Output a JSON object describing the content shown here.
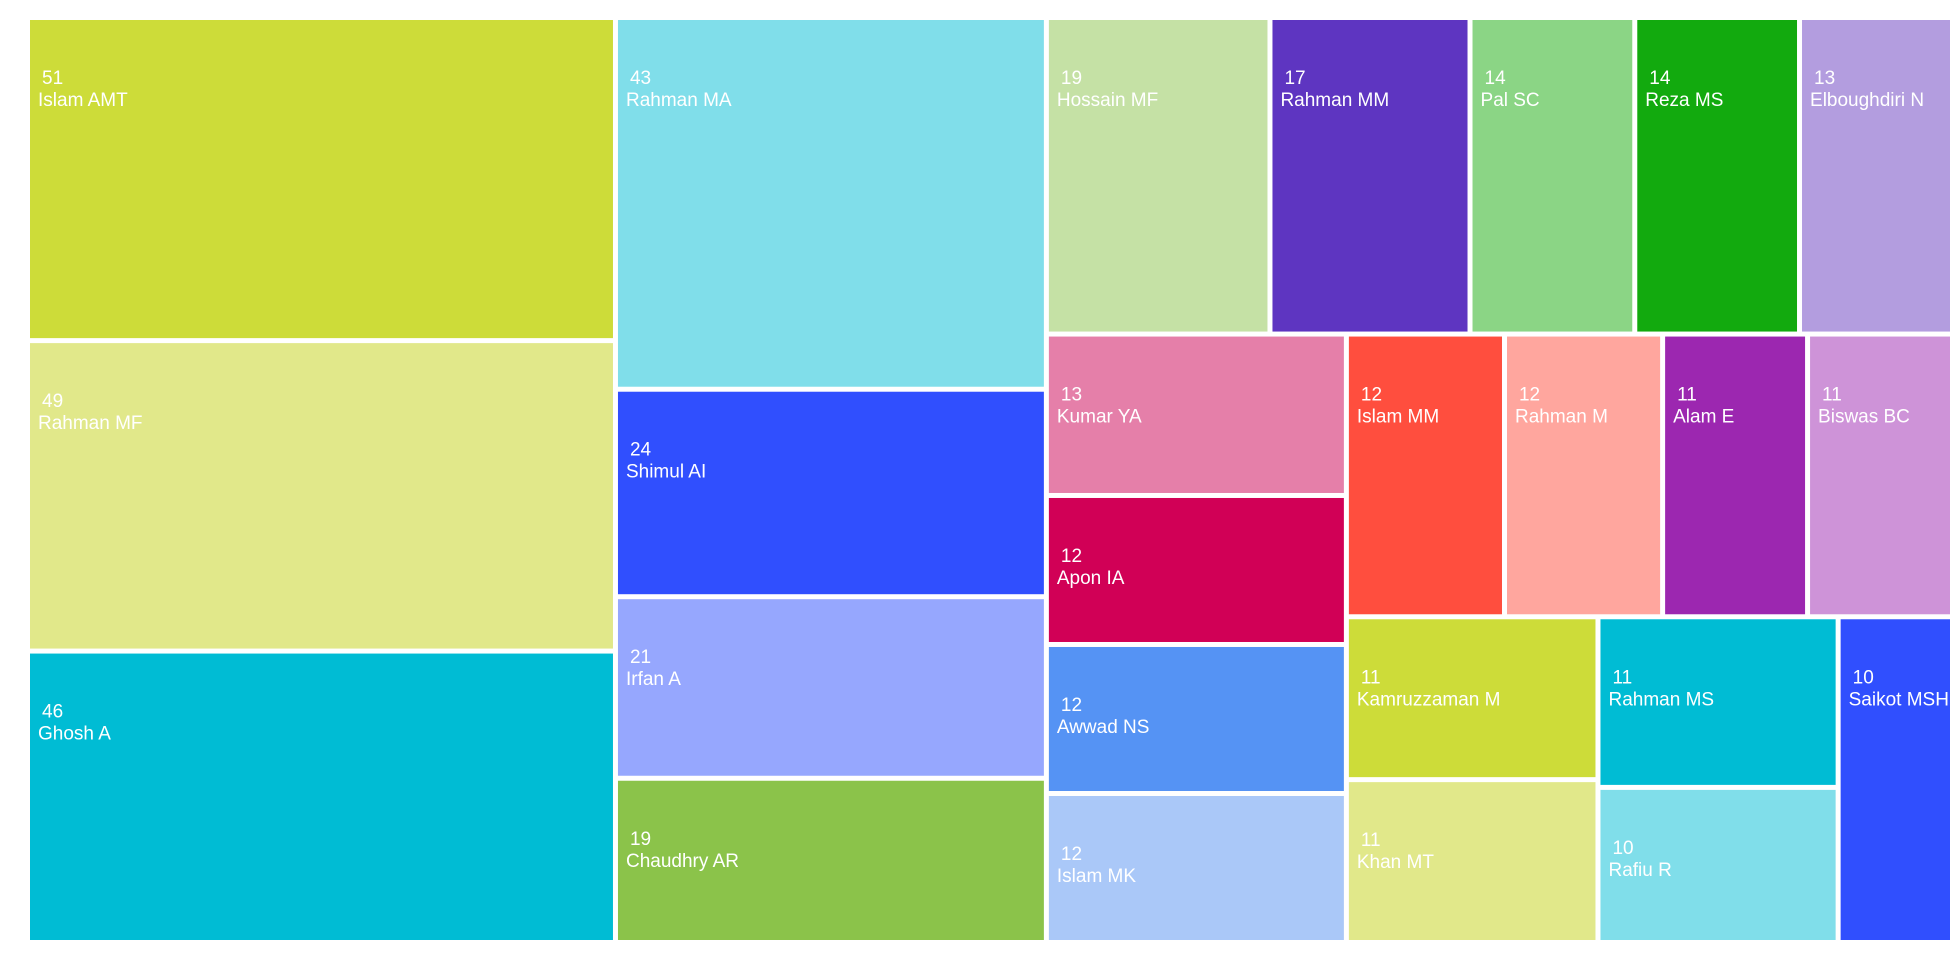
{
  "chart_data": {
    "type": "treemap",
    "categories": [
      "Islam AMT",
      "Rahman MF",
      "Ghosh A",
      "Rahman MA",
      "Shimul AI",
      "Irfan A",
      "Chaudhry AR",
      "Hossain MF",
      "Rahman MM",
      "Pal SC",
      "Reza MS",
      "Elboughdiri N",
      "Kumar YA",
      "Apon IA",
      "Awwad NS",
      "Islam MK",
      "Islam MM",
      "Rahman M",
      "Alam E",
      "Biswas BC",
      "Kamruzzaman M",
      "Khan MT",
      "Rahman MS",
      "Rafiu R",
      "Saikot MSH"
    ],
    "values": [
      51,
      49,
      46,
      43,
      24,
      21,
      19,
      19,
      17,
      14,
      14,
      13,
      13,
      12,
      12,
      12,
      12,
      12,
      11,
      11,
      11,
      11,
      11,
      10,
      10
    ],
    "colors": [
      "#cddc39",
      "#e1e88a",
      "#00bcd4",
      "#80deea",
      "#304ffe",
      "#96a7fe",
      "#8bc34a",
      "#c5e1a5",
      "#5e35c1",
      "#8bd585",
      "#12aa0e",
      "#b39ddf",
      "#e57fa9",
      "#d10056",
      "#5593f4",
      "#aac8f8",
      "#ff4e3e",
      "#ffa69e",
      "#9c27b0",
      "#ce93d8",
      "#cddc39",
      "#e1e88a",
      "#00bcd4",
      "#80deea",
      "#304ffe"
    ]
  }
}
